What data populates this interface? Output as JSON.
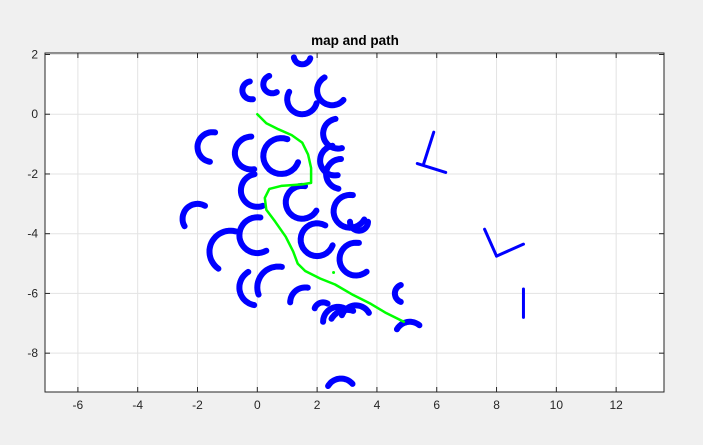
{
  "chart_data": {
    "type": "scatter",
    "title": "map and path",
    "xlabel": "",
    "ylabel": "",
    "xlim": [
      -7.1,
      13.6
    ],
    "ylim": [
      -9.3,
      2.05
    ],
    "xticks": [
      -6,
      -4,
      -2,
      0,
      2,
      4,
      6,
      8,
      10,
      12
    ],
    "yticks": [
      2,
      0,
      -2,
      -4,
      -6,
      -8
    ],
    "grid": true,
    "colors": {
      "map": "#0000ff",
      "path": "#00ff00",
      "axes_bg": "#ffffff",
      "figure_bg": "#f0f0f0",
      "grid": "#e3e3e3",
      "axis": "#262626"
    },
    "series": [
      {
        "kind": "map-arcs",
        "arcs": [
          {
            "cx": 0.5,
            "cy": 1.0,
            "r": 0.3,
            "a0": 110,
            "a1": 300
          },
          {
            "cx": 1.5,
            "cy": 1.95,
            "r": 0.28,
            "a0": 190,
            "a1": 345
          },
          {
            "cx": -0.2,
            "cy": 0.8,
            "r": 0.3,
            "a0": 100,
            "a1": 280
          },
          {
            "cx": 1.5,
            "cy": 0.5,
            "r": 0.5,
            "a0": 150,
            "a1": 345
          },
          {
            "cx": 2.5,
            "cy": 0.8,
            "r": 0.5,
            "a0": 120,
            "a1": 320
          },
          {
            "cx": 2.7,
            "cy": -0.65,
            "r": 0.5,
            "a0": 100,
            "a1": 285
          },
          {
            "cx": -1.5,
            "cy": -1.1,
            "r": 0.5,
            "a0": 80,
            "a1": 260
          },
          {
            "cx": -0.2,
            "cy": -1.3,
            "r": 0.55,
            "a0": 90,
            "a1": 280
          },
          {
            "cx": 0.8,
            "cy": -1.4,
            "r": 0.6,
            "a0": 70,
            "a1": 340
          },
          {
            "cx": 2.6,
            "cy": -1.55,
            "r": 0.5,
            "a0": 100,
            "a1": 280
          },
          {
            "cx": 2.8,
            "cy": -2.0,
            "r": 0.5,
            "a0": 90,
            "a1": 260
          },
          {
            "cx": 0.0,
            "cy": -2.55,
            "r": 0.55,
            "a0": 100,
            "a1": 290
          },
          {
            "cx": 1.5,
            "cy": -2.95,
            "r": 0.55,
            "a0": 80,
            "a1": 330
          },
          {
            "cx": 3.1,
            "cy": -3.25,
            "r": 0.55,
            "a0": 80,
            "a1": 330
          },
          {
            "cx": 3.4,
            "cy": -3.6,
            "r": 0.3,
            "a0": 180,
            "a1": 360
          },
          {
            "cx": -2.0,
            "cy": -3.5,
            "r": 0.5,
            "a0": 60,
            "a1": 210
          },
          {
            "cx": 0.0,
            "cy": -4.05,
            "r": 0.6,
            "a0": 80,
            "a1": 300
          },
          {
            "cx": 2.0,
            "cy": -4.2,
            "r": 0.55,
            "a0": 60,
            "a1": 340
          },
          {
            "cx": 3.3,
            "cy": -4.85,
            "r": 0.55,
            "a0": 80,
            "a1": 310
          },
          {
            "cx": -0.9,
            "cy": -4.6,
            "r": 0.7,
            "a0": 75,
            "a1": 235
          },
          {
            "cx": 0.0,
            "cy": -5.8,
            "r": 0.6,
            "a0": 120,
            "a1": 260
          },
          {
            "cx": 0.7,
            "cy": -5.8,
            "r": 0.7,
            "a0": 80,
            "a1": 200
          },
          {
            "cx": 1.6,
            "cy": -6.3,
            "r": 0.5,
            "a0": 80,
            "a1": 180
          },
          {
            "cx": 2.2,
            "cy": -6.6,
            "r": 0.3,
            "a0": 60,
            "a1": 160
          },
          {
            "cx": 2.7,
            "cy": -6.95,
            "r": 0.5,
            "a0": 60,
            "a1": 180
          },
          {
            "cx": 3.3,
            "cy": -6.9,
            "r": 0.5,
            "a0": 30,
            "a1": 160
          },
          {
            "cx": 3.0,
            "cy": -7.15,
            "r": 0.6,
            "a0": 70,
            "a1": 150
          },
          {
            "cx": 4.9,
            "cy": -6.0,
            "r": 0.3,
            "a0": 110,
            "a1": 250
          },
          {
            "cx": 5.1,
            "cy": -7.45,
            "r": 0.5,
            "a0": 50,
            "a1": 150
          },
          {
            "cx": 2.8,
            "cy": -9.35,
            "r": 0.5,
            "a0": 40,
            "a1": 150
          }
        ],
        "lines": [
          [
            [
              5.9,
              -0.6
            ],
            [
              5.55,
              -1.7
            ]
          ],
          [
            [
              5.35,
              -1.65
            ],
            [
              6.3,
              -1.95
            ]
          ],
          [
            [
              7.6,
              -3.85
            ],
            [
              8.0,
              -4.75
            ]
          ],
          [
            [
              8.0,
              -4.75
            ],
            [
              8.9,
              -4.35
            ]
          ],
          [
            [
              8.9,
              -5.85
            ],
            [
              8.9,
              -6.8
            ]
          ]
        ]
      },
      {
        "kind": "path",
        "points": [
          [
            0.0,
            0.0
          ],
          [
            0.3,
            -0.3
          ],
          [
            0.7,
            -0.5
          ],
          [
            1.15,
            -0.7
          ],
          [
            1.5,
            -0.95
          ],
          [
            1.7,
            -1.35
          ],
          [
            1.8,
            -1.8
          ],
          [
            1.8,
            -2.3
          ],
          [
            1.5,
            -2.35
          ],
          [
            0.8,
            -2.4
          ],
          [
            0.4,
            -2.5
          ],
          [
            0.25,
            -2.8
          ],
          [
            0.3,
            -3.2
          ],
          [
            0.6,
            -3.6
          ],
          [
            0.95,
            -4.1
          ],
          [
            1.2,
            -4.6
          ],
          [
            1.35,
            -5.0
          ],
          [
            1.6,
            -5.25
          ],
          [
            2.1,
            -5.5
          ],
          [
            2.6,
            -5.7
          ],
          [
            3.2,
            -6.05
          ],
          [
            3.8,
            -6.35
          ],
          [
            4.3,
            -6.65
          ],
          [
            4.9,
            -6.95
          ]
        ],
        "extra_points": [
          [
            2.55,
            -5.3
          ]
        ]
      }
    ]
  }
}
